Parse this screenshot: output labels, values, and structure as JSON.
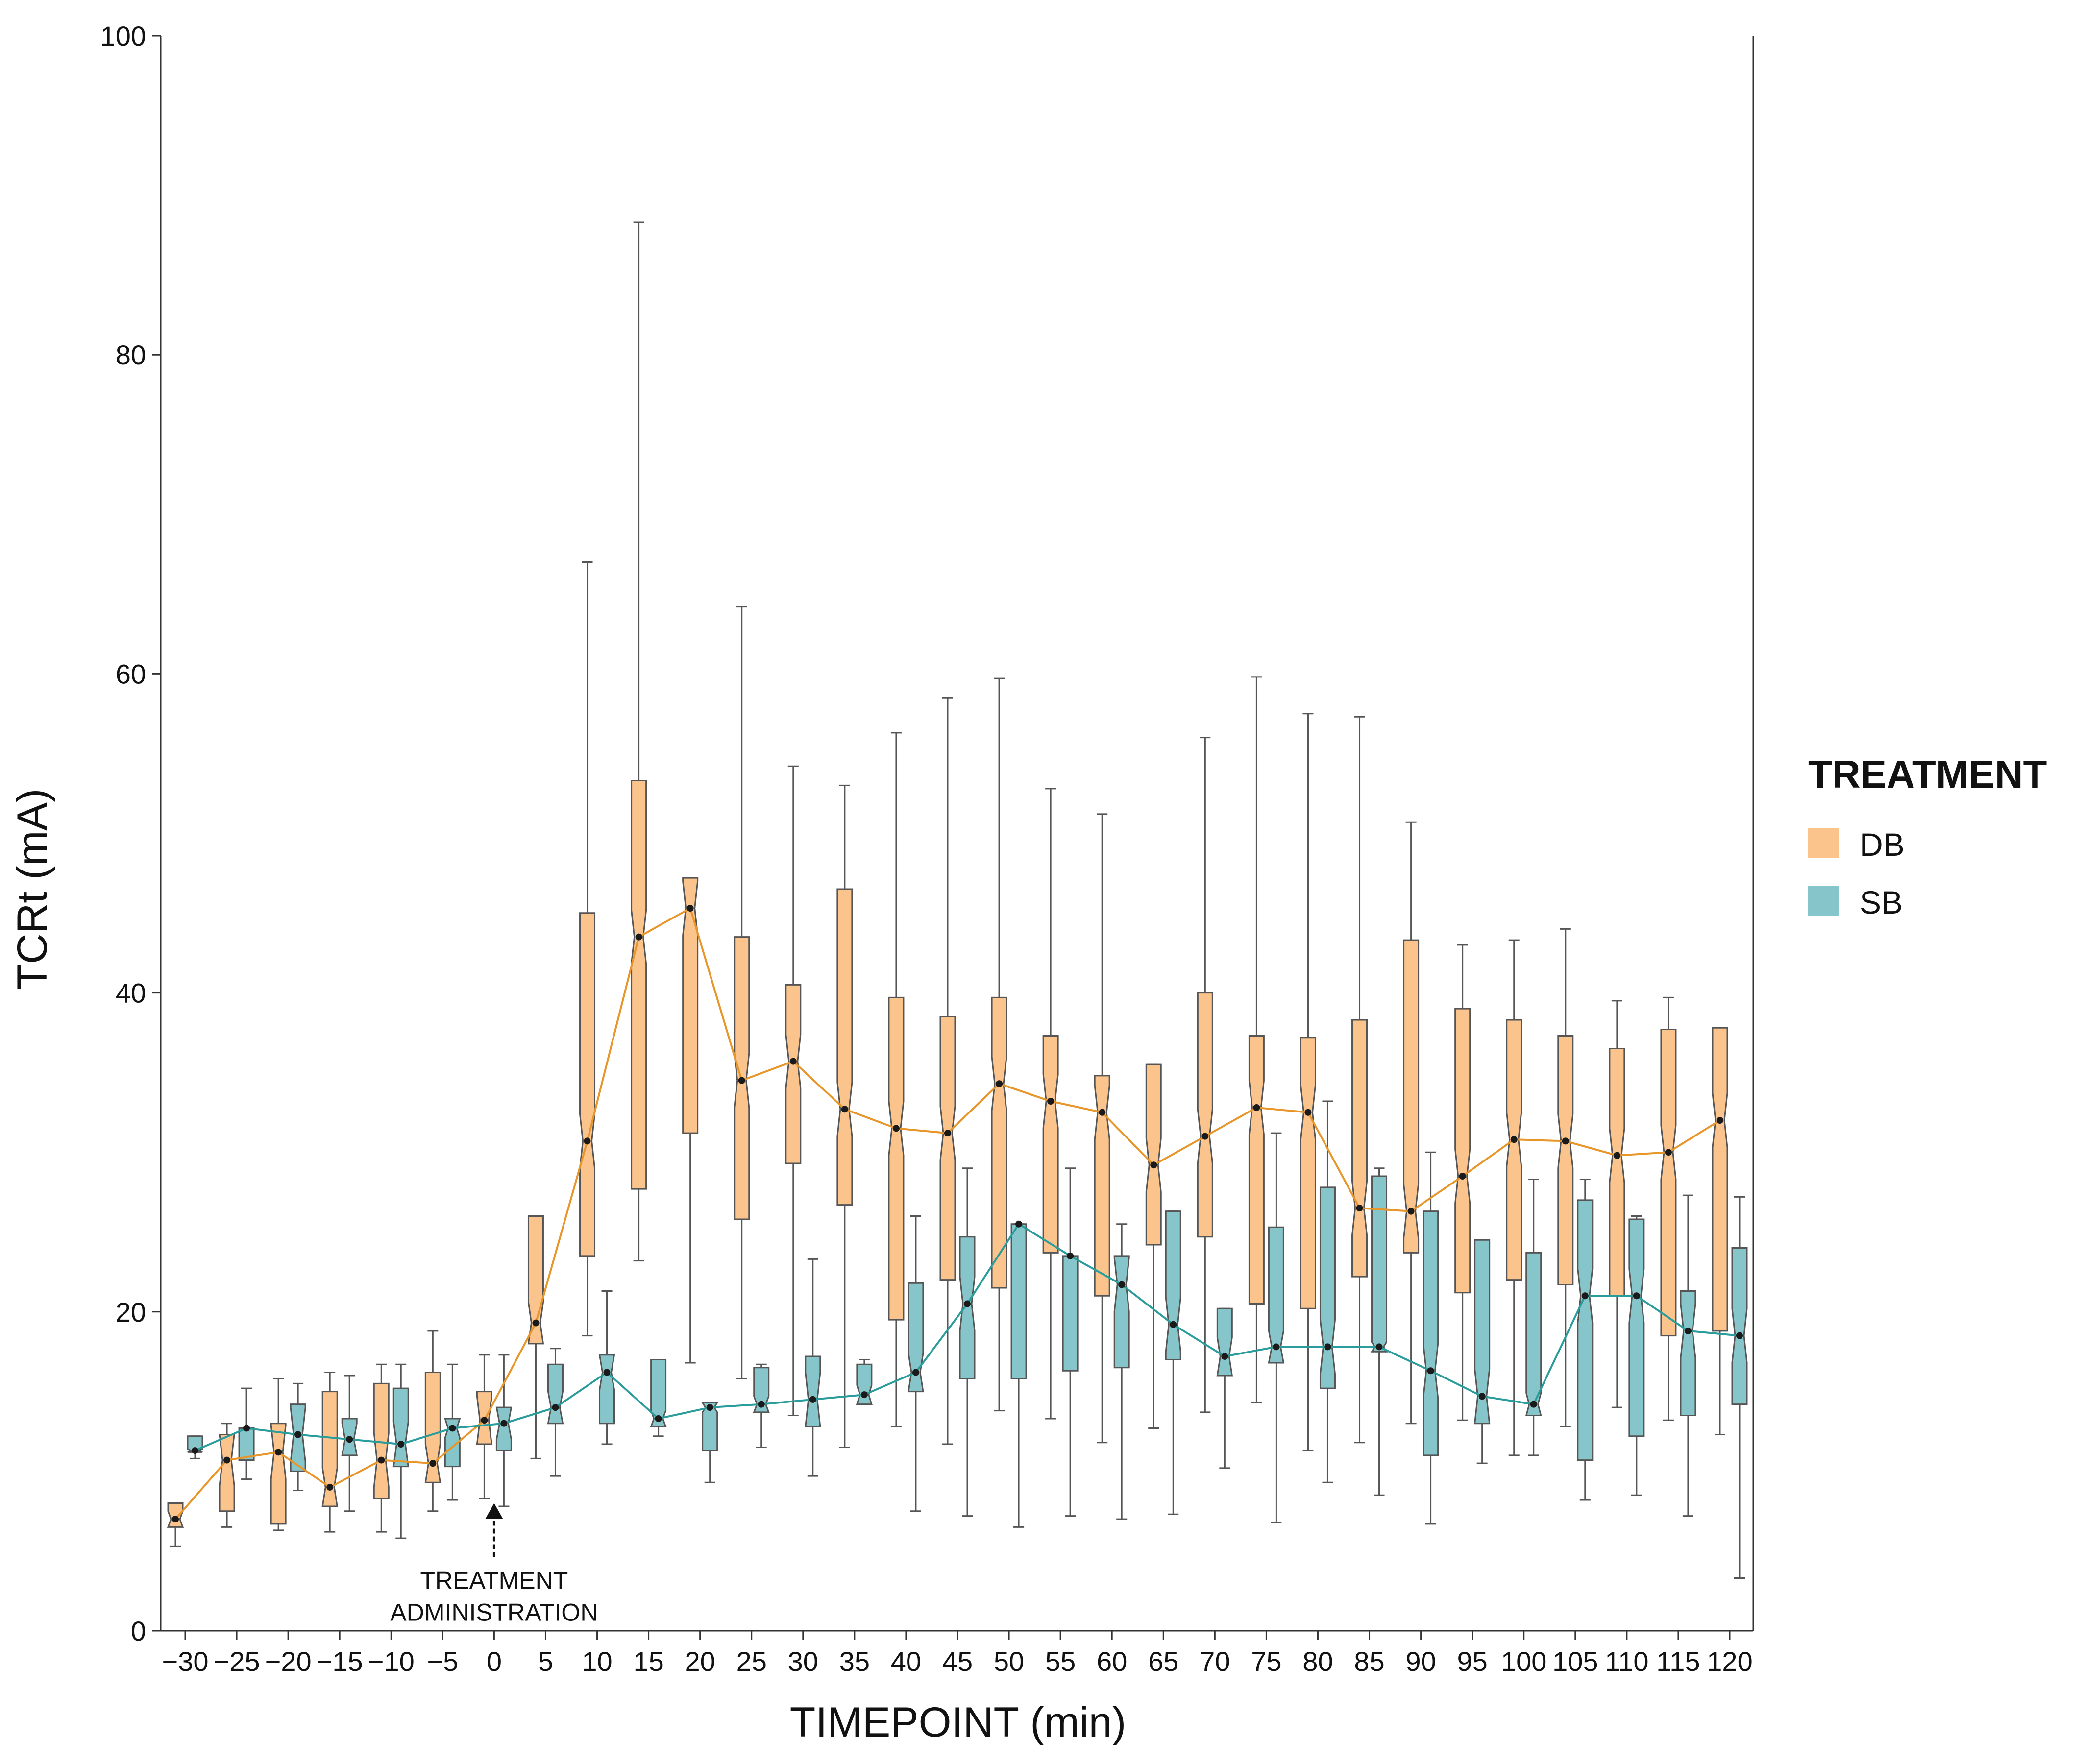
{
  "chart_data": {
    "type": "box",
    "title": "",
    "xlabel": "TIMEPOINT (min)",
    "ylabel": "TCRt (mA)",
    "ylim": [
      0,
      100
    ],
    "yticks": [
      0,
      20,
      40,
      60,
      80,
      100
    ],
    "categories": [
      "-30",
      "-25",
      "-20",
      "-15",
      "-10",
      "-5",
      "0",
      "5",
      "10",
      "15",
      "20",
      "25",
      "30",
      "35",
      "40",
      "45",
      "50",
      "55",
      "60",
      "65",
      "70",
      "75",
      "80",
      "85",
      "90",
      "95",
      "100",
      "105",
      "110",
      "115",
      "120"
    ],
    "category_labels": [
      "−30",
      "−25",
      "−20",
      "−15",
      "−10",
      "−5",
      "0",
      "5",
      "10",
      "15",
      "20",
      "25",
      "30",
      "35",
      "40",
      "45",
      "50",
      "55",
      "60",
      "65",
      "70",
      "75",
      "80",
      "85",
      "90",
      "95",
      "100",
      "105",
      "110",
      "115",
      "120"
    ],
    "legend": {
      "title": "TREATMENT",
      "position": "right"
    },
    "annotation": {
      "lines": [
        "TREATMENT",
        "ADMINISTRATION"
      ],
      "at": "0",
      "value": 8
    },
    "series": [
      {
        "name": "DB",
        "color": "#FBC48D",
        "line_color": "#E8962A",
        "boxes": [
          {
            "x": "-30",
            "min": 5.3,
            "q1": 6.5,
            "median": 7.0,
            "q3": 8.0,
            "max": 8.0
          },
          {
            "x": "-25",
            "min": 6.5,
            "q1": 7.5,
            "median": 10.7,
            "q3": 12.3,
            "max": 13.0
          },
          {
            "x": "-20",
            "min": 6.3,
            "q1": 6.7,
            "median": 11.2,
            "q3": 13.0,
            "max": 15.8
          },
          {
            "x": "-15",
            "min": 6.2,
            "q1": 7.8,
            "median": 9.0,
            "q3": 15.0,
            "max": 16.2
          },
          {
            "x": "-10",
            "min": 6.2,
            "q1": 8.3,
            "median": 10.7,
            "q3": 15.5,
            "max": 16.7
          },
          {
            "x": "-5",
            "min": 7.5,
            "q1": 9.3,
            "median": 10.5,
            "q3": 16.2,
            "max": 18.8
          },
          {
            "x": "0",
            "min": 8.3,
            "q1": 11.7,
            "median": 13.2,
            "q3": 15.0,
            "max": 17.3
          },
          {
            "x": "5",
            "min": 10.8,
            "q1": 18.0,
            "median": 19.3,
            "q3": 26.0,
            "max": 26.0
          },
          {
            "x": "10",
            "min": 18.5,
            "q1": 23.5,
            "median": 30.7,
            "q3": 45.0,
            "max": 67.0
          },
          {
            "x": "15",
            "min": 23.2,
            "q1": 27.7,
            "median": 43.5,
            "q3": 53.3,
            "max": 88.3
          },
          {
            "x": "20",
            "min": 16.8,
            "q1": 31.2,
            "median": 45.3,
            "q3": 47.2,
            "max": 47.2
          },
          {
            "x": "25",
            "min": 15.8,
            "q1": 25.8,
            "median": 34.5,
            "q3": 43.5,
            "max": 64.2
          },
          {
            "x": "30",
            "min": 13.5,
            "q1": 29.3,
            "median": 35.7,
            "q3": 40.5,
            "max": 54.2
          },
          {
            "x": "35",
            "min": 11.5,
            "q1": 26.7,
            "median": 32.7,
            "q3": 46.5,
            "max": 53.0
          },
          {
            "x": "40",
            "min": 12.8,
            "q1": 19.5,
            "median": 31.5,
            "q3": 39.7,
            "max": 56.3
          },
          {
            "x": "45",
            "min": 11.7,
            "q1": 22.0,
            "median": 31.2,
            "q3": 38.5,
            "max": 58.5
          },
          {
            "x": "50",
            "min": 13.8,
            "q1": 21.5,
            "median": 34.3,
            "q3": 39.7,
            "max": 59.7
          },
          {
            "x": "55",
            "min": 13.3,
            "q1": 23.7,
            "median": 33.2,
            "q3": 37.3,
            "max": 52.8
          },
          {
            "x": "60",
            "min": 11.8,
            "q1": 21.0,
            "median": 32.5,
            "q3": 34.8,
            "max": 51.2
          },
          {
            "x": "65",
            "min": 12.7,
            "q1": 24.2,
            "median": 29.2,
            "q3": 35.5,
            "max": 35.5
          },
          {
            "x": "70",
            "min": 13.7,
            "q1": 24.7,
            "median": 31.0,
            "q3": 40.0,
            "max": 56.0
          },
          {
            "x": "75",
            "min": 14.3,
            "q1": 20.5,
            "median": 32.8,
            "q3": 37.3,
            "max": 59.8
          },
          {
            "x": "80",
            "min": 11.3,
            "q1": 20.2,
            "median": 32.5,
            "q3": 37.2,
            "max": 57.5
          },
          {
            "x": "85",
            "min": 11.8,
            "q1": 22.2,
            "median": 26.5,
            "q3": 38.3,
            "max": 57.3
          },
          {
            "x": "90",
            "min": 13.0,
            "q1": 23.7,
            "median": 26.3,
            "q3": 43.3,
            "max": 50.7
          },
          {
            "x": "95",
            "min": 13.2,
            "q1": 21.2,
            "median": 28.5,
            "q3": 39.0,
            "max": 43.0
          },
          {
            "x": "100",
            "min": 11.0,
            "q1": 22.0,
            "median": 30.8,
            "q3": 38.3,
            "max": 43.3
          },
          {
            "x": "105",
            "min": 12.8,
            "q1": 21.7,
            "median": 30.7,
            "q3": 37.3,
            "max": 44.0
          },
          {
            "x": "110",
            "min": 14.0,
            "q1": 21.0,
            "median": 29.8,
            "q3": 36.5,
            "max": 39.5
          },
          {
            "x": "115",
            "min": 13.2,
            "q1": 18.5,
            "median": 30.0,
            "q3": 37.7,
            "max": 39.7
          },
          {
            "x": "120",
            "min": 12.3,
            "q1": 18.8,
            "median": 32.0,
            "q3": 37.8,
            "max": 37.8
          }
        ]
      },
      {
        "name": "SB",
        "color": "#86C5C9",
        "line_color": "#2A9C9C",
        "boxes": [
          {
            "x": "-30",
            "min": 10.8,
            "q1": 11.2,
            "median": 11.3,
            "q3": 12.2,
            "max": 12.2
          },
          {
            "x": "-25",
            "min": 9.5,
            "q1": 10.7,
            "median": 12.7,
            "q3": 12.7,
            "max": 15.2
          },
          {
            "x": "-20",
            "min": 8.8,
            "q1": 10.0,
            "median": 12.3,
            "q3": 14.2,
            "max": 15.5
          },
          {
            "x": "-15",
            "min": 7.5,
            "q1": 11.0,
            "median": 12.0,
            "q3": 13.3,
            "max": 16.0
          },
          {
            "x": "-10",
            "min": 5.8,
            "q1": 10.3,
            "median": 11.7,
            "q3": 15.2,
            "max": 16.7
          },
          {
            "x": "-5",
            "min": 8.2,
            "q1": 10.3,
            "median": 12.7,
            "q3": 13.3,
            "max": 16.7
          },
          {
            "x": "0",
            "min": 7.8,
            "q1": 11.3,
            "median": 13.0,
            "q3": 14.0,
            "max": 17.3
          },
          {
            "x": "5",
            "min": 9.7,
            "q1": 13.0,
            "median": 14.0,
            "q3": 16.7,
            "max": 17.7
          },
          {
            "x": "10",
            "min": 11.7,
            "q1": 13.0,
            "median": 16.2,
            "q3": 17.3,
            "max": 21.3
          },
          {
            "x": "15",
            "min": 12.2,
            "q1": 12.8,
            "median": 13.3,
            "q3": 17.0,
            "max": 17.0
          },
          {
            "x": "20",
            "min": 9.3,
            "q1": 11.3,
            "median": 14.0,
            "q3": 14.3,
            "max": 14.3
          },
          {
            "x": "25",
            "min": 11.5,
            "q1": 13.7,
            "median": 14.2,
            "q3": 16.5,
            "max": 16.7
          },
          {
            "x": "30",
            "min": 9.7,
            "q1": 12.8,
            "median": 14.5,
            "q3": 17.2,
            "max": 23.3
          },
          {
            "x": "35",
            "min": 14.2,
            "q1": 14.2,
            "median": 14.8,
            "q3": 16.7,
            "max": 17.0
          },
          {
            "x": "40",
            "min": 7.5,
            "q1": 15.0,
            "median": 16.2,
            "q3": 21.8,
            "max": 26.0
          },
          {
            "x": "45",
            "min": 7.2,
            "q1": 15.8,
            "median": 20.5,
            "q3": 24.7,
            "max": 29.0
          },
          {
            "x": "50",
            "min": 6.5,
            "q1": 15.8,
            "median": 25.5,
            "q3": 25.5,
            "max": 25.5
          },
          {
            "x": "55",
            "min": 7.2,
            "q1": 16.3,
            "median": 23.5,
            "q3": 23.5,
            "max": 29.0
          },
          {
            "x": "60",
            "min": 7.0,
            "q1": 16.5,
            "median": 21.7,
            "q3": 23.5,
            "max": 25.5
          },
          {
            "x": "65",
            "min": 7.3,
            "q1": 17.0,
            "median": 19.2,
            "q3": 26.3,
            "max": 26.3
          },
          {
            "x": "70",
            "min": 10.2,
            "q1": 16.0,
            "median": 17.2,
            "q3": 20.2,
            "max": 20.2
          },
          {
            "x": "75",
            "min": 6.8,
            "q1": 16.8,
            "median": 17.8,
            "q3": 25.3,
            "max": 31.2
          },
          {
            "x": "80",
            "min": 9.3,
            "q1": 15.2,
            "median": 17.8,
            "q3": 27.8,
            "max": 33.2
          },
          {
            "x": "85",
            "min": 8.5,
            "q1": 17.5,
            "median": 17.8,
            "q3": 28.5,
            "max": 29.0
          },
          {
            "x": "90",
            "min": 6.7,
            "q1": 11.0,
            "median": 16.3,
            "q3": 26.3,
            "max": 30.0
          },
          {
            "x": "95",
            "min": 10.5,
            "q1": 13.0,
            "median": 14.7,
            "q3": 24.5,
            "max": 24.5
          },
          {
            "x": "100",
            "min": 11.0,
            "q1": 13.5,
            "median": 14.2,
            "q3": 23.7,
            "max": 28.3
          },
          {
            "x": "105",
            "min": 8.2,
            "q1": 10.7,
            "median": 21.0,
            "q3": 27.0,
            "max": 28.3
          },
          {
            "x": "110",
            "min": 8.5,
            "q1": 12.2,
            "median": 21.0,
            "q3": 25.8,
            "max": 26.0
          },
          {
            "x": "115",
            "min": 7.2,
            "q1": 13.5,
            "median": 18.8,
            "q3": 21.3,
            "max": 27.3
          },
          {
            "x": "120",
            "min": 3.3,
            "q1": 14.2,
            "median": 18.5,
            "q3": 24.0,
            "max": 27.2
          }
        ]
      }
    ]
  }
}
